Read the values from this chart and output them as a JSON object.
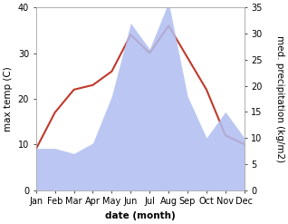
{
  "months": [
    "Jan",
    "Feb",
    "Mar",
    "Apr",
    "May",
    "Jun",
    "Jul",
    "Aug",
    "Sep",
    "Oct",
    "Nov",
    "Dec"
  ],
  "temperature": [
    9,
    17,
    22,
    23,
    26,
    34,
    30,
    36,
    29,
    22,
    12,
    10
  ],
  "precipitation": [
    8,
    8,
    7,
    9,
    18,
    32,
    27,
    36,
    18,
    10,
    15,
    10
  ],
  "temp_color": "#c0392b",
  "precip_color": "#b0bef0",
  "temp_ylim": [
    0,
    40
  ],
  "precip_ylim": [
    0,
    35
  ],
  "temp_yticks": [
    0,
    10,
    20,
    30,
    40
  ],
  "precip_yticks": [
    0,
    5,
    10,
    15,
    20,
    25,
    30,
    35
  ],
  "xlabel": "date (month)",
  "ylabel_left": "max temp (C)",
  "ylabel_right": "med. precipitation (kg/m2)",
  "label_fontsize": 7.5,
  "tick_fontsize": 7
}
